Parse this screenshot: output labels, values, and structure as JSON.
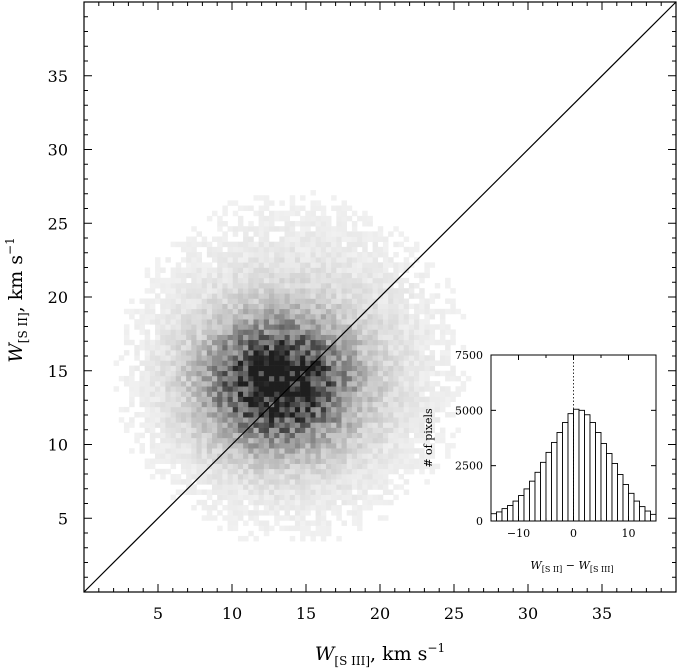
{
  "chart_data": [
    {
      "type": "heatmap",
      "description_kind": "2D density of pixels",
      "xlabel": {
        "symbol": "W",
        "subscript": "[S III]",
        "rest": ",   km s",
        "exp": "−1"
      },
      "ylabel": {
        "symbol": "W",
        "subscript": "[S II]",
        "rest": ",   km s",
        "exp": "−1"
      },
      "xlim": [
        0,
        40
      ],
      "ylim": [
        0,
        40
      ],
      "xticks": [
        5,
        10,
        15,
        20,
        25,
        30,
        35
      ],
      "yticks": [
        5,
        10,
        15,
        20,
        25,
        30,
        35
      ],
      "density_peak": {
        "x": 13,
        "y": 14
      },
      "density_spread": {
        "sx": 3.0,
        "sy": 2.6
      },
      "reference_line": {
        "type": "one-to-one",
        "from": [
          0,
          0
        ],
        "to": [
          40,
          40
        ]
      },
      "grid": false
    },
    {
      "type": "bar",
      "subtype": "histogram",
      "xlabel": {
        "a_symbol": "W",
        "a_sub": "[S II]",
        "op": " − ",
        "b_symbol": "W",
        "b_sub": "[S III]"
      },
      "ylabel": "# of pixels",
      "xlim": [
        -15,
        15
      ],
      "ylim": [
        0,
        7500
      ],
      "xticks": [
        -10,
        0,
        10
      ],
      "xtick_labels": [
        "−10",
        "0",
        "10"
      ],
      "yticks": [
        0,
        2500,
        5000,
        7500
      ],
      "bin_width": 1,
      "bin_starts": [
        -15,
        -14,
        -13,
        -12,
        -11,
        -10,
        -9,
        -8,
        -7,
        -6,
        -5,
        -4,
        -3,
        -2,
        -1,
        0,
        1,
        2,
        3,
        4,
        5,
        6,
        7,
        8,
        9,
        10,
        11,
        12,
        13,
        14
      ],
      "values": [
        330,
        410,
        560,
        700,
        900,
        1150,
        1450,
        1800,
        2200,
        2650,
        3100,
        3550,
        4000,
        4450,
        4850,
        5050,
        5000,
        4800,
        4450,
        4000,
        3500,
        3050,
        2600,
        2100,
        1650,
        1250,
        900,
        650,
        450,
        300
      ],
      "reference_line": {
        "type": "vertical-dotted",
        "x": 0
      },
      "grid": false
    }
  ]
}
